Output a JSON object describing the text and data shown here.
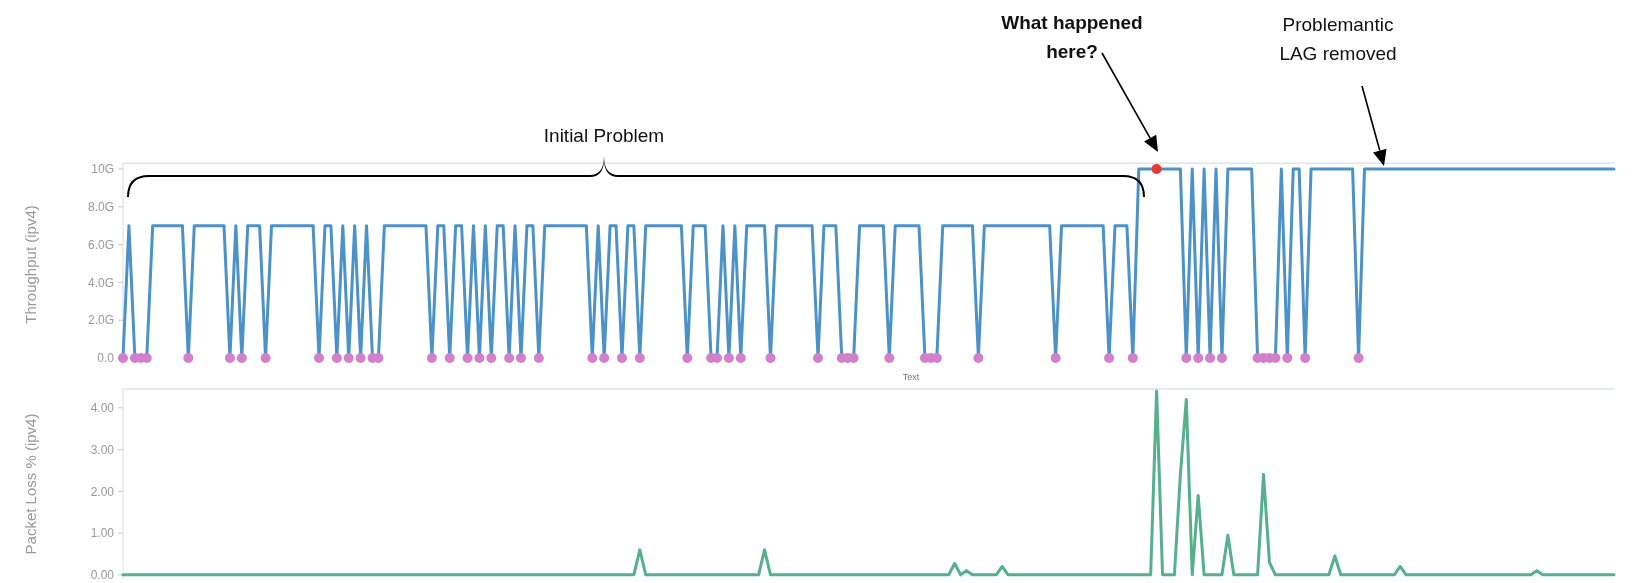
{
  "chart_data": [
    {
      "type": "line",
      "xlabel": "Text",
      "ylabel": "Throughput (ipv4)",
      "tick_labels": "y",
      "ylim": [
        -0.4,
        10.3
      ],
      "yticks": [
        {
          "value": 0,
          "label": "0.0"
        },
        {
          "value": 2,
          "label": "2.0G"
        },
        {
          "value": 4,
          "label": "4.0G"
        },
        {
          "value": 6,
          "label": "6.0G"
        },
        {
          "value": 8,
          "label": "8.0G"
        },
        {
          "value": 10,
          "label": "10G"
        }
      ],
      "annotations": [
        "Initial Problem",
        "What happened here?",
        "Problemantic LAG removed"
      ],
      "categories": [
        null,
        null,
        null,
        null,
        null,
        null,
        null,
        null,
        null,
        null,
        null,
        null,
        null,
        null,
        null,
        null,
        null,
        null,
        null,
        null,
        null,
        null,
        null,
        null,
        null,
        null,
        null,
        null,
        null,
        null,
        null,
        null,
        null,
        null,
        null,
        null,
        null,
        null,
        null,
        null,
        null,
        null,
        null,
        null,
        null,
        null,
        null,
        null,
        null,
        null,
        null,
        null,
        null,
        null,
        null,
        null,
        null,
        null,
        null,
        null,
        null,
        null,
        null,
        null,
        null,
        null,
        null,
        null,
        null,
        null,
        null,
        null,
        null,
        null,
        null,
        null,
        null,
        null,
        null,
        null,
        null,
        null,
        null,
        null,
        null,
        null,
        null,
        null,
        null,
        null,
        null,
        null,
        null,
        null,
        null,
        null,
        null,
        null,
        null,
        null,
        null,
        null,
        null,
        null,
        null,
        null,
        null,
        null,
        null,
        null,
        null,
        null,
        null,
        null,
        null,
        null,
        null,
        null,
        null,
        null,
        null,
        null,
        null,
        null,
        null,
        null,
        null,
        null,
        null,
        null,
        null,
        null,
        null,
        null,
        null,
        null,
        null,
        null,
        null,
        null,
        null,
        null,
        null,
        null,
        null,
        null,
        null,
        null,
        null,
        null,
        null,
        null,
        null,
        null,
        null,
        null,
        null,
        null,
        null,
        null,
        null,
        null,
        null,
        null,
        null,
        null,
        null,
        null,
        null,
        null,
        null,
        null,
        null,
        null,
        null,
        null,
        null,
        null,
        null,
        null,
        null,
        null,
        null,
        null,
        null,
        null,
        null,
        null,
        null,
        null,
        null,
        null,
        null,
        null,
        null,
        null,
        null,
        null,
        null,
        null,
        null,
        null,
        null,
        null,
        null,
        null,
        null,
        null,
        null,
        null,
        null,
        null,
        null,
        null,
        null,
        null,
        null,
        null,
        null,
        null,
        null,
        null,
        null,
        null,
        null,
        null,
        null,
        null,
        null,
        null,
        null,
        null,
        null,
        null,
        null,
        null,
        null,
        null,
        null,
        null,
        null,
        null,
        null,
        null,
        null,
        null,
        null,
        null,
        null,
        null,
        null,
        null
      ],
      "series": [
        {
          "color": "#4b92c9",
          "values": [
            0,
            7,
            0,
            0,
            0,
            7,
            7,
            7,
            7,
            7,
            7,
            0,
            7,
            7,
            7,
            7,
            7,
            7,
            0,
            7,
            0,
            7,
            7,
            7,
            0,
            7,
            7,
            7,
            7,
            7,
            7,
            7,
            7,
            0,
            7,
            7,
            0,
            7,
            0,
            7,
            0,
            7,
            0,
            0,
            7,
            7,
            7,
            7,
            7,
            7,
            7,
            7,
            0,
            7,
            7,
            0,
            7,
            7,
            0,
            7,
            0,
            7,
            0,
            7,
            7,
            0,
            7,
            0,
            7,
            7,
            0,
            7,
            7,
            7,
            7,
            7,
            7,
            7,
            7,
            0,
            7,
            0,
            7,
            7,
            0,
            7,
            7,
            0,
            7,
            7,
            7,
            7,
            7,
            7,
            7,
            0,
            7,
            7,
            7,
            0,
            0,
            7,
            0,
            7,
            0,
            7,
            7,
            7,
            7,
            0,
            7,
            7,
            7,
            7,
            7,
            7,
            7,
            0,
            7,
            7,
            7,
            0,
            0,
            0,
            7,
            7,
            7,
            7,
            7,
            0,
            7,
            7,
            7,
            7,
            7,
            0,
            0,
            0,
            7,
            7,
            7,
            7,
            7,
            7,
            0,
            7,
            7,
            7,
            7,
            7,
            7,
            7,
            7,
            7,
            7,
            7,
            7,
            0,
            7,
            7,
            7,
            7,
            7,
            7,
            7,
            7,
            0,
            7,
            7,
            7,
            0,
            10,
            10,
            10,
            10,
            10,
            10,
            10,
            10,
            0,
            10,
            0,
            10,
            0,
            10,
            0,
            10,
            10,
            10,
            10,
            10,
            0,
            0,
            0,
            0,
            10,
            0,
            10,
            10,
            0,
            10,
            10,
            10,
            10,
            10,
            10,
            10,
            10,
            0,
            10,
            10,
            10,
            10,
            10,
            10,
            10,
            10,
            10,
            10,
            10,
            10,
            10,
            10,
            10,
            10,
            10,
            10,
            10,
            10,
            10,
            10,
            10,
            10,
            10,
            10,
            10,
            10,
            10,
            10,
            10,
            10,
            10,
            10,
            10,
            10,
            10,
            10,
            10,
            10,
            10,
            10,
            10
          ]
        },
        {
          "type": "scatter",
          "color": "#d47fcb",
          "values": [
            0,
            null,
            0,
            0,
            0,
            null,
            null,
            null,
            null,
            null,
            null,
            0,
            null,
            null,
            null,
            null,
            null,
            null,
            0,
            null,
            0,
            null,
            null,
            null,
            0,
            null,
            null,
            null,
            null,
            null,
            null,
            null,
            null,
            0,
            null,
            null,
            0,
            null,
            0,
            null,
            0,
            null,
            0,
            0,
            null,
            null,
            null,
            null,
            null,
            null,
            null,
            null,
            0,
            null,
            null,
            0,
            null,
            null,
            0,
            null,
            0,
            null,
            0,
            null,
            null,
            0,
            null,
            0,
            null,
            null,
            0,
            null,
            null,
            null,
            null,
            null,
            null,
            null,
            null,
            0,
            null,
            0,
            null,
            null,
            0,
            null,
            null,
            0,
            null,
            null,
            null,
            null,
            null,
            null,
            null,
            0,
            null,
            null,
            null,
            0,
            0,
            null,
            0,
            null,
            0,
            null,
            null,
            null,
            null,
            0,
            null,
            null,
            null,
            null,
            null,
            null,
            null,
            0,
            null,
            null,
            null,
            0,
            0,
            0,
            null,
            null,
            null,
            null,
            null,
            0,
            null,
            null,
            null,
            null,
            null,
            0,
            0,
            0,
            null,
            null,
            null,
            null,
            null,
            null,
            0,
            null,
            null,
            null,
            null,
            null,
            null,
            null,
            null,
            null,
            null,
            null,
            null,
            0,
            null,
            null,
            null,
            null,
            null,
            null,
            null,
            null,
            0,
            null,
            null,
            null,
            0,
            null,
            null,
            null,
            null,
            null,
            null,
            null,
            null,
            0,
            null,
            0,
            null,
            0,
            null,
            0,
            null,
            null,
            null,
            null,
            null,
            0,
            0,
            0,
            0,
            null,
            0,
            null,
            null,
            0,
            null,
            null,
            null,
            null,
            null,
            null,
            null,
            null,
            0,
            null,
            null,
            null,
            null,
            null,
            null,
            null,
            null,
            null,
            null,
            null,
            null,
            null,
            null,
            null,
            null,
            null,
            null,
            null,
            null,
            null,
            null,
            null,
            null,
            null,
            null,
            null,
            null,
            null,
            null,
            null,
            null,
            null,
            null,
            null,
            null,
            null,
            null,
            null,
            null,
            null,
            null,
            null
          ]
        },
        {
          "type": "scatter",
          "color": "#e5383b",
          "values": [
            null,
            null,
            null,
            null,
            null,
            null,
            null,
            null,
            null,
            null,
            null,
            null,
            null,
            null,
            null,
            null,
            null,
            null,
            null,
            null,
            null,
            null,
            null,
            null,
            null,
            null,
            null,
            null,
            null,
            null,
            null,
            null,
            null,
            null,
            null,
            null,
            null,
            null,
            null,
            null,
            null,
            null,
            null,
            null,
            null,
            null,
            null,
            null,
            null,
            null,
            null,
            null,
            null,
            null,
            null,
            null,
            null,
            null,
            null,
            null,
            null,
            null,
            null,
            null,
            null,
            null,
            null,
            null,
            null,
            null,
            null,
            null,
            null,
            null,
            null,
            null,
            null,
            null,
            null,
            null,
            null,
            null,
            null,
            null,
            null,
            null,
            null,
            null,
            null,
            null,
            null,
            null,
            null,
            null,
            null,
            null,
            null,
            null,
            null,
            null,
            null,
            null,
            null,
            null,
            null,
            null,
            null,
            null,
            null,
            null,
            null,
            null,
            null,
            null,
            null,
            null,
            null,
            null,
            null,
            null,
            null,
            null,
            null,
            null,
            null,
            null,
            null,
            null,
            null,
            null,
            null,
            null,
            null,
            null,
            null,
            null,
            null,
            null,
            null,
            null,
            null,
            null,
            null,
            null,
            null,
            null,
            null,
            null,
            null,
            null,
            null,
            null,
            null,
            null,
            null,
            null,
            null,
            null,
            null,
            null,
            null,
            null,
            null,
            null,
            null,
            null,
            null,
            null,
            null,
            null,
            null,
            null,
            null,
            null,
            10,
            null,
            null,
            null,
            null,
            null,
            null,
            null,
            null,
            null,
            null,
            null,
            null,
            null,
            null,
            null,
            null,
            null,
            null,
            null,
            null,
            null,
            null,
            null,
            null,
            null,
            null,
            null,
            null,
            null,
            null,
            null,
            null,
            null,
            null,
            null,
            null,
            null,
            null,
            null,
            null,
            null,
            null,
            null,
            null,
            null,
            null,
            null,
            null,
            null,
            null,
            null,
            null,
            null,
            null,
            null,
            null,
            null,
            null,
            null,
            null,
            null,
            null,
            null,
            null,
            null,
            null,
            null,
            null,
            null,
            null,
            null,
            null,
            null,
            null,
            null,
            null,
            null
          ]
        }
      ]
    },
    {
      "type": "line",
      "ylabel": "Packet Loss % (ipv4)",
      "tick_labels": "y",
      "ylim": [
        -0.1,
        4.45
      ],
      "yticks": [
        {
          "value": 0,
          "label": "0.00"
        },
        {
          "value": 1,
          "label": "1.00"
        },
        {
          "value": 2,
          "label": "2.00"
        },
        {
          "value": 3,
          "label": "3.00"
        },
        {
          "value": 4,
          "label": "4.00"
        }
      ],
      "categories": [
        null,
        null,
        null,
        null,
        null,
        null,
        null,
        null,
        null,
        null,
        null,
        null,
        null,
        null,
        null,
        null,
        null,
        null,
        null,
        null,
        null,
        null,
        null,
        null,
        null,
        null,
        null,
        null,
        null,
        null,
        null,
        null,
        null,
        null,
        null,
        null,
        null,
        null,
        null,
        null,
        null,
        null,
        null,
        null,
        null,
        null,
        null,
        null,
        null,
        null,
        null,
        null,
        null,
        null,
        null,
        null,
        null,
        null,
        null,
        null,
        null,
        null,
        null,
        null,
        null,
        null,
        null,
        null,
        null,
        null,
        null,
        null,
        null,
        null,
        null,
        null,
        null,
        null,
        null,
        null,
        null,
        null,
        null,
        null,
        null,
        null,
        null,
        null,
        null,
        null,
        null,
        null,
        null,
        null,
        null,
        null,
        null,
        null,
        null,
        null,
        null,
        null,
        null,
        null,
        null,
        null,
        null,
        null,
        null,
        null,
        null,
        null,
        null,
        null,
        null,
        null,
        null,
        null,
        null,
        null,
        null,
        null,
        null,
        null,
        null,
        null,
        null,
        null,
        null,
        null,
        null,
        null,
        null,
        null,
        null,
        null,
        null,
        null,
        null,
        null,
        null,
        null,
        null,
        null,
        null,
        null,
        null,
        null,
        null,
        null,
        null,
        null,
        null,
        null,
        null,
        null,
        null,
        null,
        null,
        null,
        null,
        null,
        null,
        null,
        null,
        null,
        null,
        null,
        null,
        null,
        null,
        null,
        null,
        null,
        null,
        null,
        null,
        null,
        null,
        null,
        null,
        null,
        null,
        null,
        null,
        null,
        null,
        null,
        null,
        null,
        null,
        null,
        null,
        null,
        null,
        null,
        null,
        null,
        null,
        null,
        null,
        null,
        null,
        null,
        null,
        null,
        null,
        null,
        null,
        null,
        null,
        null,
        null,
        null,
        null,
        null,
        null,
        null,
        null,
        null,
        null,
        null,
        null,
        null,
        null,
        null,
        null,
        null,
        null,
        null,
        null,
        null,
        null,
        null,
        null,
        null,
        null,
        null,
        null,
        null,
        null,
        null,
        null,
        null,
        null,
        null,
        null,
        null,
        null,
        null,
        null,
        null
      ],
      "series": [
        {
          "color": "#55b08b",
          "values": [
            0,
            0,
            0,
            0,
            0,
            0,
            0,
            0,
            0,
            0,
            0,
            0,
            0,
            0,
            0,
            0,
            0,
            0,
            0,
            0,
            0,
            0,
            0,
            0,
            0,
            0,
            0,
            0,
            0,
            0,
            0,
            0,
            0,
            0,
            0,
            0,
            0,
            0,
            0,
            0,
            0,
            0,
            0,
            0,
            0,
            0,
            0,
            0,
            0,
            0,
            0,
            0,
            0,
            0,
            0,
            0,
            0,
            0,
            0,
            0,
            0,
            0,
            0,
            0,
            0,
            0,
            0,
            0,
            0,
            0,
            0,
            0,
            0,
            0,
            0,
            0,
            0,
            0,
            0,
            0,
            0,
            0,
            0,
            0,
            0,
            0,
            0,
            0.6,
            0,
            0,
            0,
            0,
            0,
            0,
            0,
            0,
            0,
            0,
            0,
            0,
            0,
            0,
            0,
            0,
            0,
            0,
            0,
            0,
            0.6,
            0,
            0,
            0,
            0,
            0,
            0,
            0,
            0,
            0,
            0,
            0,
            0,
            0,
            0,
            0,
            0,
            0,
            0,
            0,
            0,
            0,
            0,
            0,
            0,
            0,
            0,
            0,
            0,
            0,
            0,
            0,
            0.27,
            0,
            0.1,
            0,
            0,
            0,
            0,
            0,
            0.2,
            0,
            0,
            0,
            0,
            0,
            0,
            0,
            0,
            0,
            0,
            0,
            0,
            0,
            0,
            0,
            0,
            0,
            0,
            0,
            0,
            0,
            0,
            0,
            0,
            0,
            4.4,
            0,
            0,
            0,
            2.4,
            4.2,
            0,
            1.9,
            0,
            0,
            0,
            0,
            0.95,
            0,
            0,
            0,
            0,
            0,
            2.4,
            0.3,
            0,
            0,
            0,
            0,
            0,
            0,
            0,
            0,
            0,
            0,
            0.45,
            0,
            0,
            0,
            0,
            0,
            0,
            0,
            0,
            0,
            0,
            0.2,
            0,
            0,
            0,
            0,
            0,
            0,
            0,
            0,
            0,
            0,
            0,
            0,
            0,
            0,
            0,
            0,
            0,
            0,
            0,
            0,
            0,
            0,
            0.1,
            0,
            0,
            0,
            0,
            0,
            0,
            0,
            0,
            0,
            0,
            0,
            0,
            0
          ]
        }
      ]
    }
  ]
}
